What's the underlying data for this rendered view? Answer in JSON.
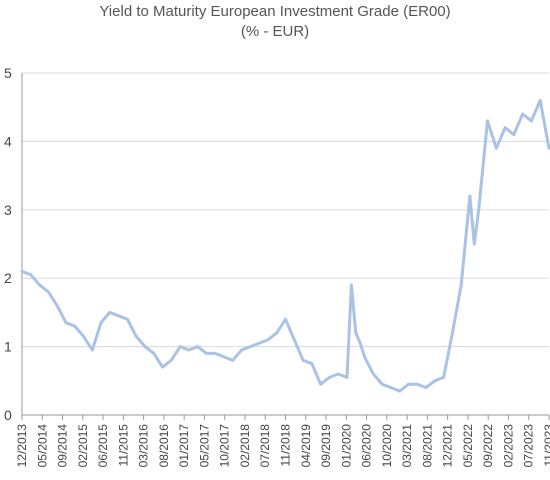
{
  "chart_data": {
    "type": "line",
    "title": "Yield to Maturity European Investment Grade (ER00)",
    "subtitle": "(% - EUR)",
    "xlabel": "",
    "ylabel": "",
    "ylim": [
      0,
      5
    ],
    "yticks": [
      "0",
      "1",
      "2",
      "3",
      "4",
      "5"
    ],
    "xtick_labels": [
      "12/2013",
      "05/2014",
      "09/2014",
      "02/2015",
      "06/2015",
      "11/2015",
      "03/2016",
      "08/2016",
      "01/2017",
      "05/2017",
      "10/2017",
      "02/2018",
      "07/2018",
      "11/2018",
      "04/2019",
      "09/2019",
      "01/2020",
      "06/2020",
      "10/2020",
      "03/2021",
      "08/2021",
      "12/2021",
      "05/2022",
      "09/2022",
      "02/2023",
      "07/2023",
      "11/2023"
    ],
    "grid": "horizontal",
    "legend": "none",
    "colors": {
      "line": "#a9c2e6",
      "grid": "#d9d9d9",
      "axis": "#9a9a9a"
    },
    "series": [
      {
        "x": [
          "2013-12",
          "2014-02",
          "2014-04",
          "2014-06",
          "2014-08",
          "2014-10",
          "2014-12",
          "2015-02",
          "2015-04",
          "2015-06",
          "2015-08",
          "2015-10",
          "2015-12",
          "2016-02",
          "2016-04",
          "2016-06",
          "2016-08",
          "2016-10",
          "2016-12",
          "2017-02",
          "2017-04",
          "2017-06",
          "2017-08",
          "2017-10",
          "2017-12",
          "2018-02",
          "2018-04",
          "2018-06",
          "2018-08",
          "2018-10",
          "2018-12",
          "2019-02",
          "2019-04",
          "2019-06",
          "2019-08",
          "2019-10",
          "2019-12",
          "2020-02",
          "2020-03",
          "2020-04",
          "2020-05",
          "2020-06",
          "2020-08",
          "2020-10",
          "2020-12",
          "2021-02",
          "2021-04",
          "2021-06",
          "2021-08",
          "2021-10",
          "2021-12",
          "2022-02",
          "2022-04",
          "2022-06",
          "2022-07",
          "2022-08",
          "2022-10",
          "2022-12",
          "2023-02",
          "2023-04",
          "2023-06",
          "2023-08",
          "2023-10",
          "2023-12"
        ],
        "values": [
          2.1,
          2.05,
          1.9,
          1.8,
          1.6,
          1.35,
          1.3,
          1.15,
          0.95,
          1.35,
          1.5,
          1.45,
          1.4,
          1.15,
          1.0,
          0.9,
          0.7,
          0.8,
          1.0,
          0.95,
          1.0,
          0.9,
          0.9,
          0.85,
          0.8,
          0.95,
          1.0,
          1.05,
          1.1,
          1.2,
          1.4,
          1.1,
          0.8,
          0.75,
          0.45,
          0.55,
          0.6,
          0.55,
          1.9,
          1.2,
          1.05,
          0.85,
          0.6,
          0.45,
          0.4,
          0.35,
          0.45,
          0.45,
          0.4,
          0.5,
          0.55,
          1.2,
          1.9,
          3.2,
          2.5,
          3.0,
          4.3,
          3.9,
          4.2,
          4.1,
          4.4,
          4.3,
          4.6,
          3.9
        ]
      }
    ]
  }
}
